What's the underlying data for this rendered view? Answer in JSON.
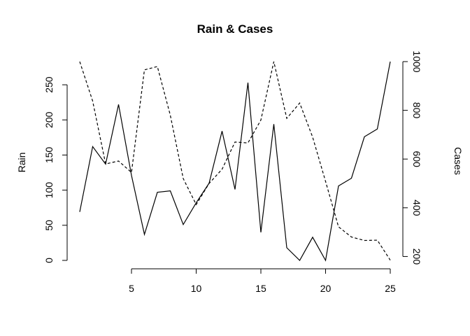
{
  "chart_data": {
    "type": "line",
    "title": "Rain & Cases",
    "xlabel": "",
    "x": [
      1,
      2,
      3,
      4,
      5,
      6,
      7,
      8,
      9,
      10,
      11,
      12,
      13,
      14,
      15,
      16,
      17,
      18,
      19,
      20,
      21,
      22,
      23,
      24,
      25
    ],
    "xlim": [
      1,
      25
    ],
    "x_ticks": [
      5,
      10,
      15,
      20,
      25
    ],
    "left_axis": {
      "label": "Rain",
      "ylim": [
        0,
        283
      ],
      "ticks": [
        0,
        50,
        100,
        150,
        200,
        250
      ]
    },
    "right_axis": {
      "label": "Cases",
      "ylim": [
        184,
        1000
      ],
      "ticks": [
        200,
        400,
        600,
        800,
        1000
      ]
    },
    "series": [
      {
        "axis": "left",
        "line_style": "solid",
        "values": [
          69,
          162,
          137,
          222,
          121,
          37,
          97,
          99,
          51,
          82,
          110,
          184,
          101,
          253,
          40,
          194,
          18,
          0,
          33,
          0,
          106,
          117,
          176,
          187,
          283
        ]
      },
      {
        "axis": "right",
        "line_style": "dashed",
        "values": [
          1000,
          838,
          580,
          592,
          545,
          966,
          980,
          780,
          520,
          413,
          500,
          558,
          670,
          666,
          760,
          1000,
          767,
          830,
          690,
          508,
          322,
          280,
          266,
          267,
          185
        ]
      }
    ],
    "grid": false,
    "legend": "none"
  }
}
